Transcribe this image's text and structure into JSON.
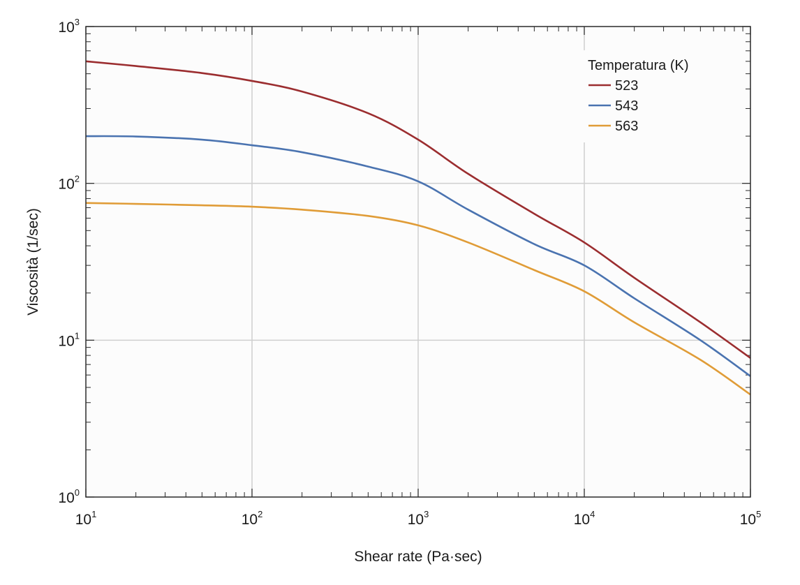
{
  "chart_data": {
    "type": "line",
    "title": "",
    "xlabel": "Shear rate (Pa·sec)",
    "ylabel": "Viscosità (1/sec)",
    "xscale": "log",
    "yscale": "log",
    "xlim": [
      10,
      100000
    ],
    "ylim": [
      1,
      1000
    ],
    "grid": true,
    "x_ticks": [
      {
        "base": "10",
        "exp": "1"
      },
      {
        "base": "10",
        "exp": "2"
      },
      {
        "base": "10",
        "exp": "3"
      },
      {
        "base": "10",
        "exp": "4"
      },
      {
        "base": "10",
        "exp": "5"
      }
    ],
    "y_ticks": [
      {
        "base": "10",
        "exp": "0"
      },
      {
        "base": "10",
        "exp": "1"
      },
      {
        "base": "10",
        "exp": "2"
      },
      {
        "base": "10",
        "exp": "3"
      }
    ],
    "legend": {
      "title": "Temperatura (K)",
      "placement": "top-right"
    },
    "series": [
      {
        "name": "523",
        "color": "#9b2d2f",
        "x": [
          10,
          20,
          50,
          100,
          200,
          500,
          1000,
          2000,
          5000,
          10000,
          20000,
          50000,
          100000
        ],
        "y": [
          600,
          560,
          505,
          450,
          385,
          280,
          190,
          115,
          64,
          42,
          25,
          13,
          7.7
        ]
      },
      {
        "name": "543",
        "color": "#4a73b0",
        "x": [
          10,
          20,
          50,
          100,
          200,
          500,
          1000,
          2000,
          5000,
          10000,
          20000,
          50000,
          100000
        ],
        "y": [
          200,
          199,
          190,
          175,
          158,
          128,
          103,
          68,
          41,
          30,
          18.5,
          10,
          5.9
        ]
      },
      {
        "name": "563",
        "color": "#e09c37",
        "x": [
          10,
          20,
          50,
          100,
          200,
          500,
          1000,
          2000,
          5000,
          10000,
          20000,
          50000,
          100000
        ],
        "y": [
          75,
          74,
          72.5,
          71,
          68,
          62,
          54,
          42,
          28,
          20.5,
          13,
          7.5,
          4.5
        ]
      }
    ]
  }
}
